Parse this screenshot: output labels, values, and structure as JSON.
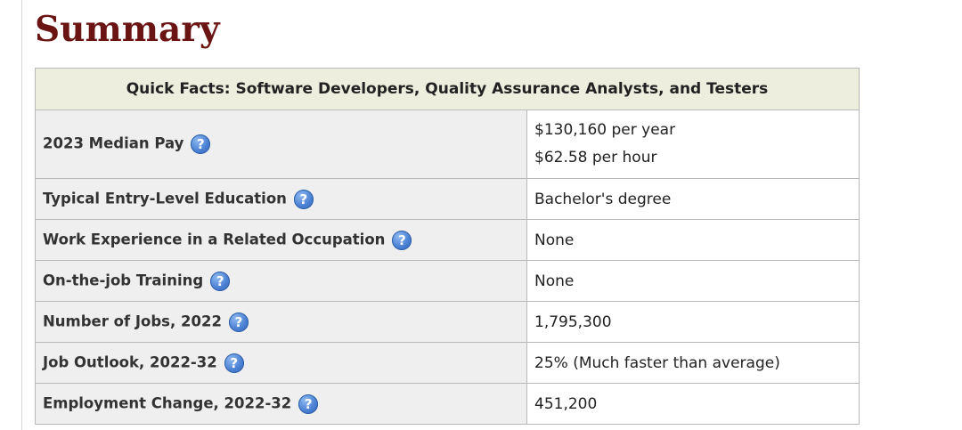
{
  "page": {
    "title": "Summary"
  },
  "quick_facts": {
    "heading": "Quick Facts: Software Developers, Quality Assurance Analysts, and Testers",
    "help_icon_glyph": "?",
    "rows": [
      {
        "label": "2023 Median Pay",
        "values": [
          "$130,160 per year",
          "$62.58 per hour"
        ]
      },
      {
        "label": "Typical Entry-Level Education",
        "values": [
          "Bachelor's degree"
        ]
      },
      {
        "label": "Work Experience in a Related Occupation",
        "values": [
          "None"
        ]
      },
      {
        "label": "On-the-job Training",
        "values": [
          "None"
        ]
      },
      {
        "label": "Number of Jobs, 2022",
        "values": [
          "1,795,300"
        ]
      },
      {
        "label": "Job Outlook, 2022-32",
        "values": [
          "25% (Much faster than average)"
        ]
      },
      {
        "label": "Employment Change, 2022-32",
        "values": [
          "451,200"
        ]
      }
    ]
  },
  "colors": {
    "title": "#6b1414",
    "header_bg": "#eeeedf",
    "label_bg": "#efefef",
    "border": "#b9b9b9",
    "help_icon": "#4c82d4"
  },
  "icons": {
    "help": "help-icon"
  }
}
